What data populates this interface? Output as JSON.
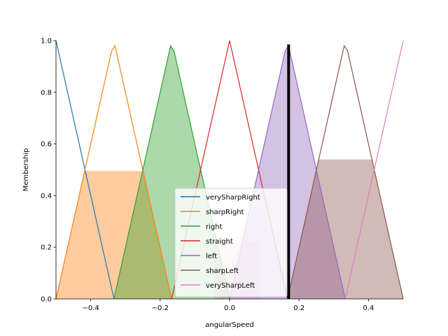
{
  "chart_data": {
    "type": "line",
    "title": "",
    "xlabel": "angularSpeed",
    "ylabel": "Membership",
    "xlim": [
      -0.5,
      0.5
    ],
    "ylim": [
      0,
      1.0
    ],
    "xticks": [
      -0.4,
      -0.2,
      0.0,
      0.2,
      0.4
    ],
    "xtick_labels": [
      "−0.4",
      "−0.2",
      "0.0",
      "0.2",
      "0.4"
    ],
    "yticks": [
      0.0,
      0.2,
      0.4,
      0.6,
      0.8,
      1.0
    ],
    "ytick_labels": [
      "0.0",
      "0.2",
      "0.4",
      "0.6",
      "0.8",
      "1.0"
    ],
    "grid": false,
    "legend_position": "lower-center",
    "crisp_value_line": {
      "x": 0.17,
      "color": "#000000"
    },
    "series": [
      {
        "name": "verySharpRight",
        "color": "#1f77b4",
        "x": [
          -0.5,
          -0.333
        ],
        "y": [
          1.0,
          0.0
        ]
      },
      {
        "name": "sharpRight",
        "color": "#ff7f0e",
        "x": [
          -0.5,
          -0.34,
          -0.33,
          -0.167
        ],
        "y": [
          0.0,
          0.96,
          0.98,
          0.0
        ]
      },
      {
        "name": "right",
        "color": "#2ca02c",
        "x": [
          -0.333,
          -0.17,
          -0.16,
          0.0
        ],
        "y": [
          0.0,
          0.98,
          0.96,
          0.0
        ]
      },
      {
        "name": "straight",
        "color": "#d62728",
        "x": [
          -0.167,
          0.0,
          0.167
        ],
        "y": [
          0.0,
          1.0,
          0.0
        ]
      },
      {
        "name": "left",
        "color": "#9467bd",
        "x": [
          0.0,
          0.16,
          0.17,
          0.333
        ],
        "y": [
          0.0,
          0.96,
          0.98,
          0.0
        ]
      },
      {
        "name": "sharpLeft",
        "color": "#8c564b",
        "x": [
          0.167,
          0.33,
          0.34,
          0.5
        ],
        "y": [
          0.0,
          0.98,
          0.96,
          0.0
        ]
      },
      {
        "name": "verySharpLeft",
        "color": "#e377c2",
        "x": [
          0.333,
          0.5
        ],
        "y": [
          0.0,
          1.0
        ]
      }
    ],
    "activations": [
      {
        "name": "sharpRight",
        "color": "#ff7f0e",
        "alpha": 0.4,
        "x": [
          -0.5,
          -0.418,
          -0.25,
          -0.167
        ],
        "y": [
          0.0,
          0.495,
          0.495,
          0.0
        ]
      },
      {
        "name": "right",
        "color": "#2ca02c",
        "alpha": 0.4,
        "x": [
          -0.333,
          -0.17,
          -0.16,
          0.0
        ],
        "y": [
          0.0,
          0.98,
          0.96,
          0.0
        ]
      },
      {
        "name": "straight",
        "color": "#d62728",
        "alpha": 0.2,
        "x": [
          -0.167,
          -0.125,
          0.0,
          0.167
        ],
        "y": [
          0.0,
          0.0,
          0.0,
          0.0
        ]
      },
      {
        "name": "straight",
        "color": "#d62728",
        "alpha": 0.15,
        "x": [
          -0.045,
          -0.045,
          0.09,
          0.09
        ],
        "y": [
          0.0,
          0.22,
          0.22,
          0.0
        ]
      },
      {
        "name": "left",
        "color": "#9467bd",
        "alpha": 0.4,
        "x": [
          0.0,
          0.16,
          0.17,
          0.333
        ],
        "y": [
          0.0,
          0.96,
          0.98,
          0.0
        ]
      },
      {
        "name": "left",
        "color": "#9467bd",
        "alpha": 0.15,
        "x": [
          -0.03,
          0.06,
          0.1,
          0.17
        ],
        "y": [
          0.0,
          0.35,
          0.35,
          0.0
        ]
      },
      {
        "name": "sharpLeft",
        "color": "#8c564b",
        "alpha": 0.4,
        "x": [
          0.167,
          0.255,
          0.41,
          0.5
        ],
        "y": [
          0.0,
          0.54,
          0.54,
          0.0
        ]
      }
    ]
  }
}
